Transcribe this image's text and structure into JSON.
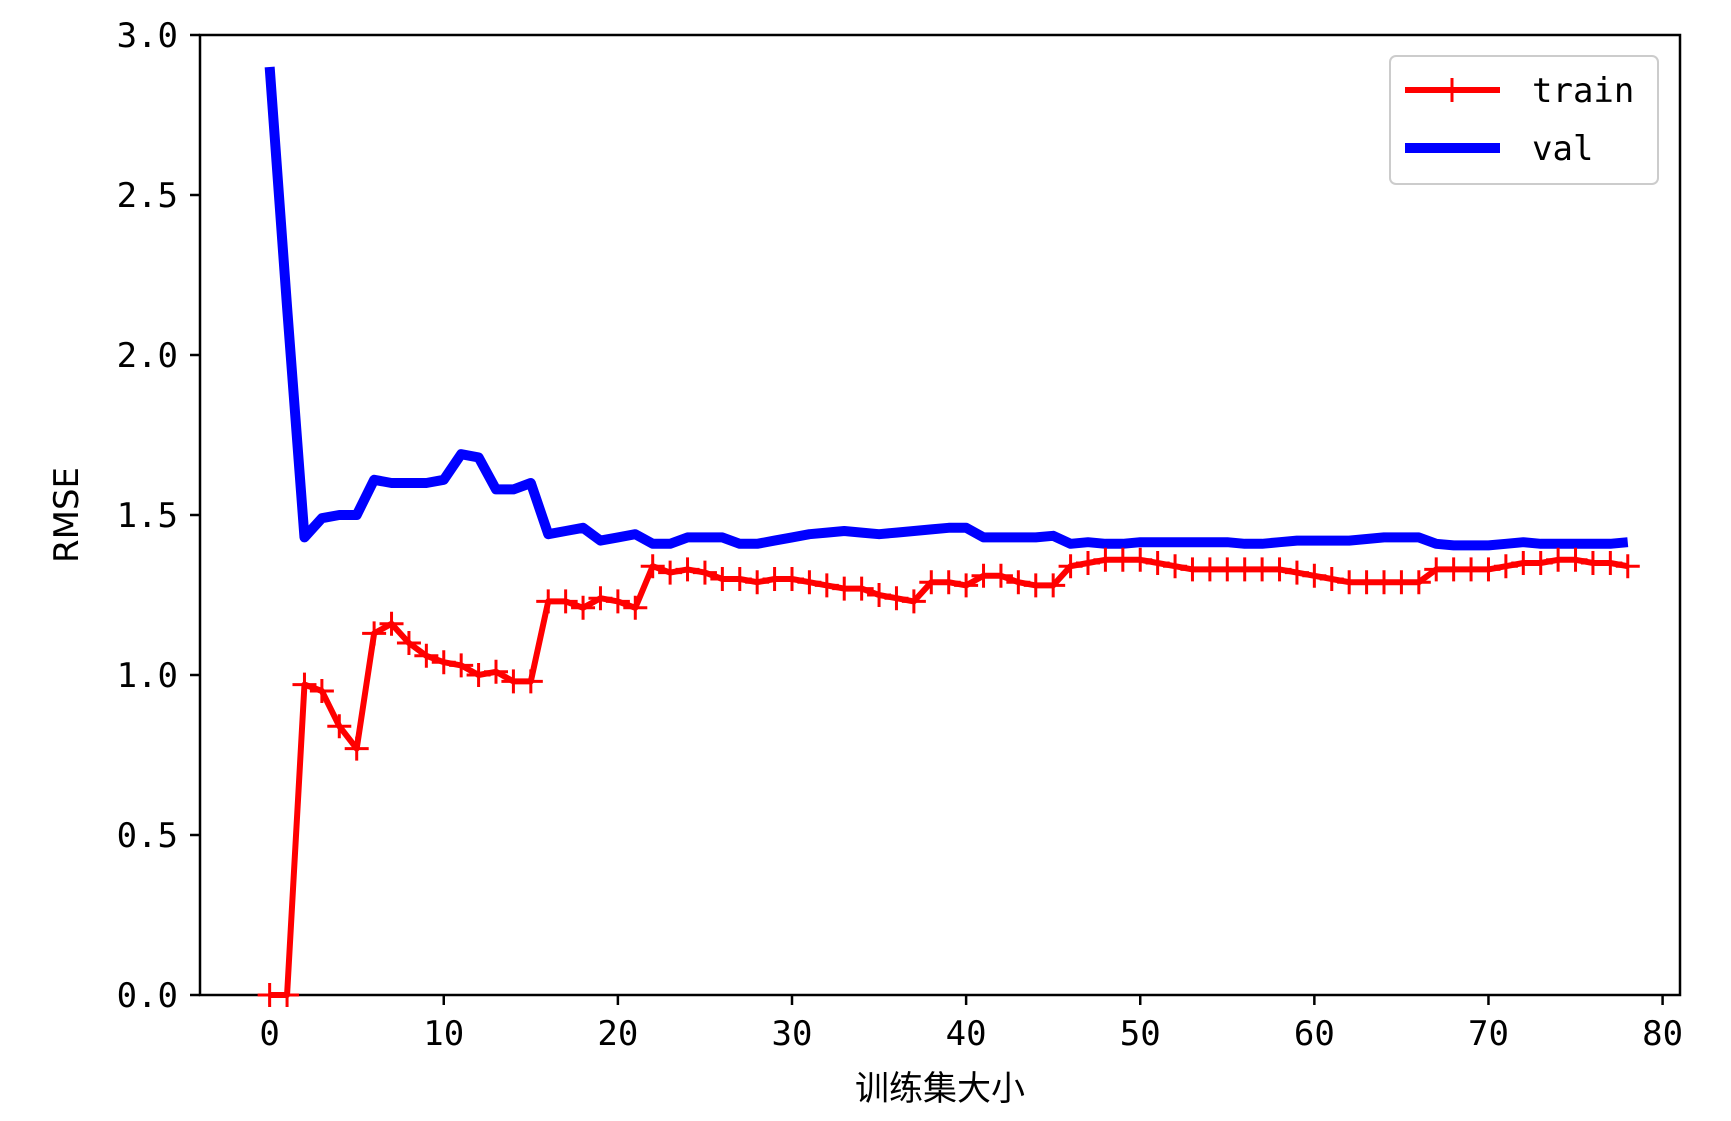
{
  "chart_data": {
    "type": "line",
    "xlabel": "训练集大小",
    "ylabel": "RMSE",
    "xlim": [
      -4,
      81
    ],
    "ylim": [
      0,
      3.0
    ],
    "x_ticks": [
      0,
      10,
      20,
      30,
      40,
      50,
      60,
      70,
      80
    ],
    "y_ticks": [
      "0.0",
      "0.5",
      "1.0",
      "1.5",
      "2.0",
      "2.5",
      "3.0"
    ],
    "grid": false,
    "legend_position": "top-right",
    "series": [
      {
        "name": "train",
        "color": "#ff0000",
        "marker": "+",
        "values": [
          0.0,
          0.0,
          0.97,
          0.95,
          0.84,
          0.77,
          1.13,
          1.16,
          1.1,
          1.06,
          1.04,
          1.03,
          1.0,
          1.01,
          0.98,
          0.98,
          1.23,
          1.23,
          1.21,
          1.24,
          1.23,
          1.21,
          1.34,
          1.32,
          1.33,
          1.32,
          1.3,
          1.3,
          1.29,
          1.3,
          1.3,
          1.29,
          1.28,
          1.27,
          1.27,
          1.25,
          1.24,
          1.23,
          1.29,
          1.29,
          1.28,
          1.31,
          1.31,
          1.29,
          1.28,
          1.28,
          1.34,
          1.35,
          1.36,
          1.36,
          1.36,
          1.35,
          1.34,
          1.33,
          1.33,
          1.33,
          1.33,
          1.33,
          1.33,
          1.32,
          1.31,
          1.3,
          1.29,
          1.29,
          1.29,
          1.29,
          1.29,
          1.33,
          1.33,
          1.33,
          1.33,
          1.34,
          1.35,
          1.35,
          1.36,
          1.36,
          1.35,
          1.35,
          1.34
        ]
      },
      {
        "name": "val",
        "color": "#0000ff",
        "values": [
          2.9,
          2.15,
          1.43,
          1.49,
          1.5,
          1.5,
          1.61,
          1.6,
          1.6,
          1.6,
          1.61,
          1.69,
          1.68,
          1.58,
          1.58,
          1.6,
          1.44,
          1.45,
          1.46,
          1.42,
          1.43,
          1.44,
          1.41,
          1.41,
          1.43,
          1.43,
          1.43,
          1.41,
          1.41,
          1.42,
          1.43,
          1.44,
          1.445,
          1.45,
          1.445,
          1.44,
          1.445,
          1.45,
          1.455,
          1.46,
          1.46,
          1.43,
          1.43,
          1.43,
          1.43,
          1.435,
          1.41,
          1.415,
          1.41,
          1.41,
          1.415,
          1.415,
          1.415,
          1.415,
          1.415,
          1.415,
          1.41,
          1.41,
          1.415,
          1.42,
          1.42,
          1.42,
          1.42,
          1.425,
          1.43,
          1.43,
          1.43,
          1.41,
          1.405,
          1.405,
          1.405,
          1.41,
          1.415,
          1.41,
          1.41,
          1.41,
          1.41,
          1.41,
          1.415
        ]
      }
    ]
  }
}
